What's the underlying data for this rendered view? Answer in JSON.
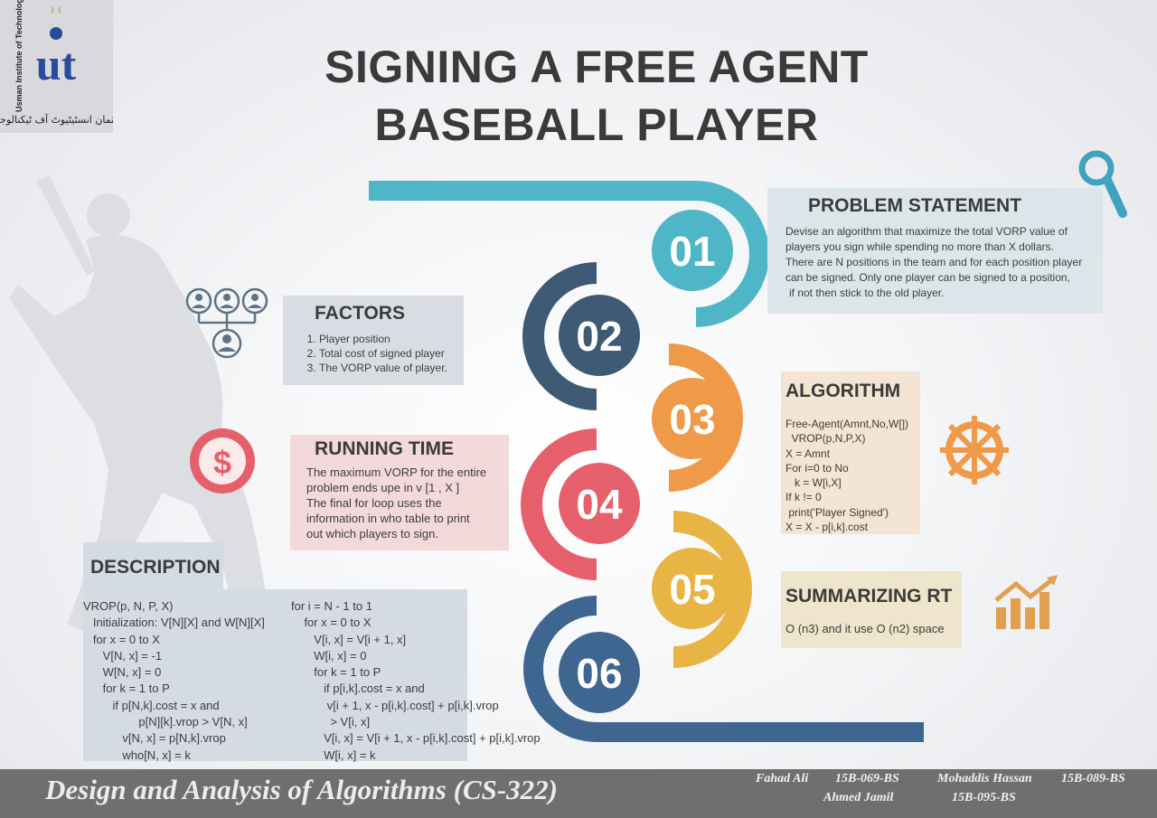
{
  "logo": {
    "mark": "ut",
    "name": "Usman Institute of Technology",
    "urdu_name": "عثمان انسٹیٹیوٹ آف ٹیکنالوجی"
  },
  "title": {
    "line1": "SIGNING A FREE AGENT",
    "line2": "BASEBALL PLAYER"
  },
  "steps": [
    "01",
    "02",
    "03",
    "04",
    "05",
    "06"
  ],
  "colors": {
    "step1": "#4fb6c8",
    "step2": "#3e5a74",
    "step3": "#ef9a48",
    "step4": "#e5606a",
    "step5": "#e8b443",
    "step6": "#3e6690"
  },
  "problem": {
    "heading": "PROBLEM STATEMENT",
    "lines": [
      "Devise an algorithm that maximize the total VORP value of",
      "players you sign while spending no more than X dollars.",
      "There are N positions in the team and for each position player",
      "can be signed. Only one player can be signed to a position,",
      "if not then stick to the old player."
    ]
  },
  "factors": {
    "heading": "FACTORS",
    "items": [
      "Player position",
      "Total cost of signed player",
      "The VORP value of player."
    ]
  },
  "running_time": {
    "heading": "RUNNING TIME",
    "lines": [
      "The maximum VORP for the entire",
      "problem ends upe in v [1 , X ]",
      "The final for loop uses the",
      "information in who table to print",
      "out which players to sign."
    ]
  },
  "algorithm": {
    "heading": "ALGORITHM",
    "lines": [
      "Free-Agent(Amnt,No,W[])",
      "  VROP(p,N,P,X)",
      "X = Amnt",
      "For i=0 to No",
      "   k = W[i,X]",
      "If k != 0",
      " print('Player Signed')",
      "X = X - p[i,k].cost"
    ]
  },
  "summarizing": {
    "heading": "SUMMARIZING RT",
    "text": "O (n3) and it use O (n2) space"
  },
  "description": {
    "heading": "DESCRIPTION",
    "col1": [
      "VROP(p, N, P, X)",
      "   Initialization: V[N][X] and W[N][X]",
      "   for x = 0 to X",
      "      V[N, x] = -1",
      "      W[N, x] = 0",
      "      for k = 1 to P",
      "         if p[N,k].cost = x and",
      "                 p[N][k].vrop > V[N, x]",
      "            v[N, x] = p[N,k].vrop",
      "            who[N, x] = k"
    ],
    "col2": [
      "for i = N - 1 to 1",
      "    for x = 0 to X",
      "       V[i, x] = V[i + 1, x]",
      "       W[i, x] = 0",
      "       for k = 1 to P",
      "          if p[i,k].cost = x and",
      "           v[i + 1, x - p[i,k].cost] + p[i,k].vrop",
      "            > V[i, x]",
      "          V[i, x] = V[i + 1, x - p[i,k].cost] + p[i,k].vrop",
      "          W[i, x] = k"
    ]
  },
  "footer": {
    "course": "Design and Analysis of Algorithms (CS-322)",
    "students": [
      {
        "name": "Fahad Ali",
        "id": "15B-069-BS"
      },
      {
        "name": "Mohaddis Hassan",
        "id": "15B-089-BS"
      },
      {
        "name": "Ahmed Jamil",
        "id": "15B-095-BS"
      }
    ]
  },
  "icons": [
    "batter-silhouette-icon",
    "magnifier-icon",
    "hierarchy-people-icon",
    "dollar-icon",
    "gear-icon",
    "bar-chart-up-icon"
  ],
  "icon_symbols": {
    "dollar": "$"
  }
}
